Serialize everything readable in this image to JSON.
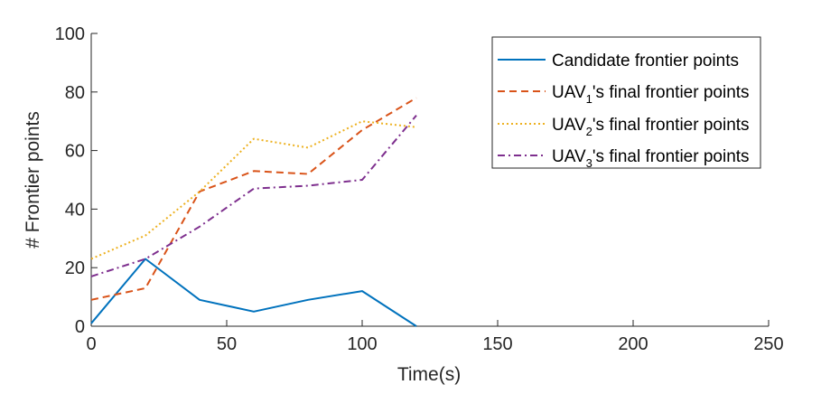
{
  "chart_data": {
    "type": "line",
    "title": "",
    "xlabel": "Time(s)",
    "ylabel": "# Frontier points",
    "xlim": [
      0,
      250
    ],
    "ylim": [
      0,
      100
    ],
    "xticks": [
      0,
      50,
      100,
      150,
      200,
      250
    ],
    "yticks": [
      0,
      20,
      40,
      60,
      80,
      100
    ],
    "grid": false,
    "legend_position": "top-right",
    "x": [
      0,
      20,
      40,
      60,
      80,
      100,
      120
    ],
    "series": [
      {
        "name": "Candidate frontier points",
        "legend": {
          "prefix": "Candidate frontier points",
          "sub": "",
          "suffix": ""
        },
        "values": [
          1,
          23,
          9,
          5,
          9,
          12,
          0
        ],
        "color": "#0072BD",
        "line_style": "solid"
      },
      {
        "name": "UAV1's final frontier points",
        "legend": {
          "prefix": "UAV",
          "sub": "1",
          "suffix": "'s final frontier points"
        },
        "values": [
          9,
          13,
          46,
          53,
          52,
          67,
          78
        ],
        "color": "#D95319",
        "line_style": "dashed"
      },
      {
        "name": "UAV2's final frontier points",
        "legend": {
          "prefix": "UAV",
          "sub": "2",
          "suffix": "'s final frontier points"
        },
        "values": [
          23,
          31,
          46,
          64,
          61,
          70,
          68
        ],
        "color": "#EDB120",
        "line_style": "dotted"
      },
      {
        "name": "UAV3's final frontier points",
        "legend": {
          "prefix": "UAV",
          "sub": "3",
          "suffix": "'s final frontier points"
        },
        "values": [
          17,
          23,
          34,
          47,
          48,
          50,
          72
        ],
        "color": "#7E2F8E",
        "line_style": "dash-dot"
      }
    ]
  }
}
